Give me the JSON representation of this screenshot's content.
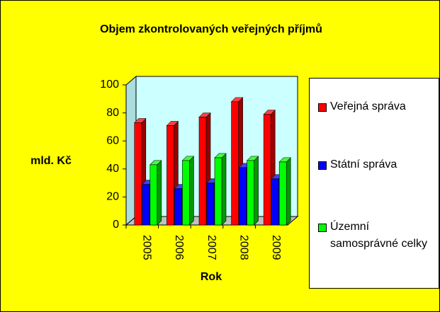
{
  "chart_data": {
    "type": "bar3d",
    "title": "Objem zkontrolovaných veřejných příjmů",
    "xlabel": "Rok",
    "ylabel": "mld. Kč",
    "categories": [
      "2005",
      "2006",
      "2007",
      "2008",
      "2009"
    ],
    "series": [
      {
        "name": "Veřejná správa",
        "color": "#ff0000",
        "values": [
          73,
          71,
          77,
          88,
          79
        ]
      },
      {
        "name": "Státní správa",
        "color": "#0000ff",
        "values": [
          29,
          26,
          30,
          41,
          33
        ]
      },
      {
        "name": "Územní samosprávné celky",
        "color": "#00ff00",
        "values": [
          43,
          46,
          48,
          46,
          45
        ]
      }
    ],
    "ylim": [
      0,
      100
    ],
    "yticks": [
      0,
      20,
      40,
      60,
      80,
      100
    ],
    "legend": "right"
  }
}
